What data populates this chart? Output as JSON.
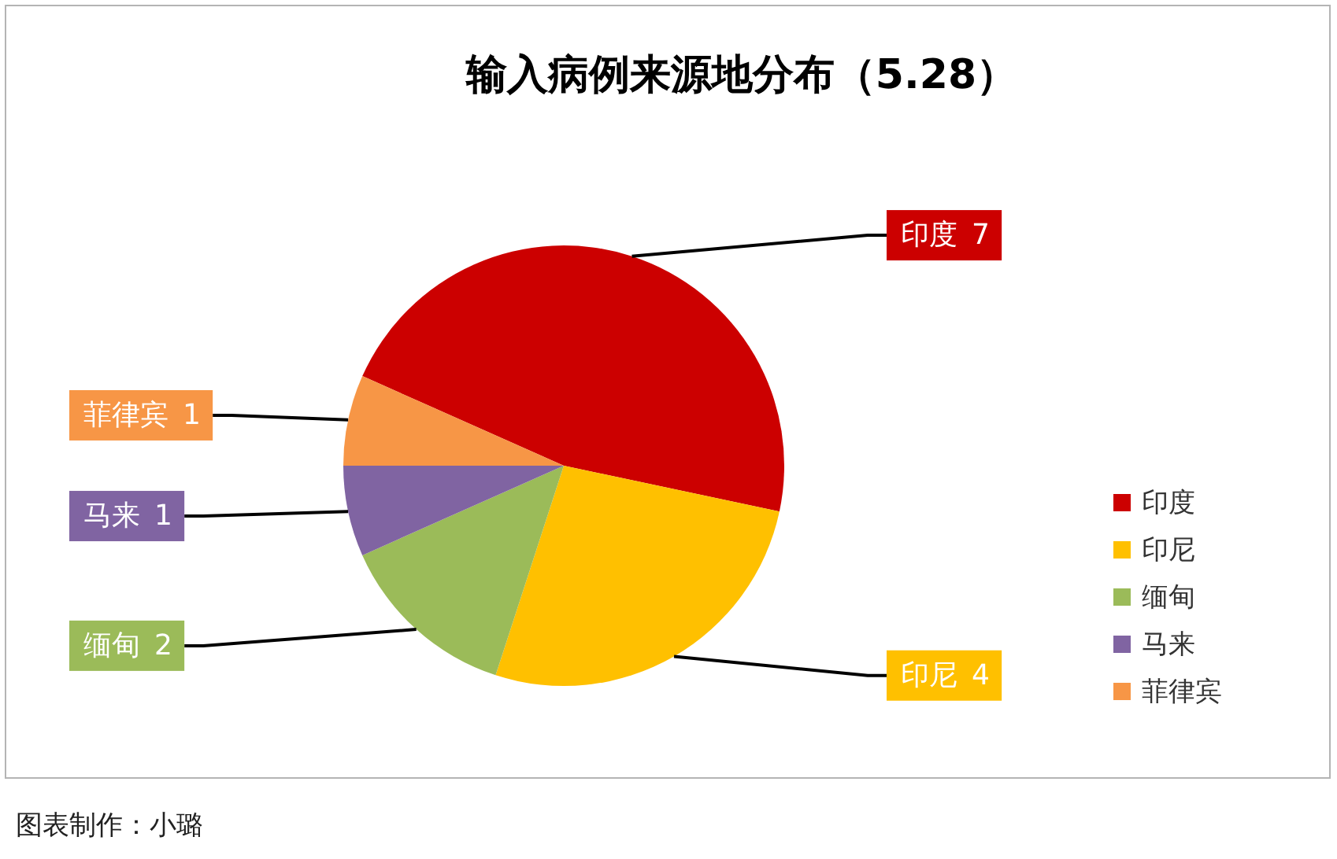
{
  "chart_data": {
    "type": "pie",
    "title": "输入病例来源地分布（5.28）",
    "categories": [
      "印度",
      "印尼",
      "缅甸",
      "马来",
      "菲律宾"
    ],
    "values": [
      7,
      4,
      2,
      1,
      1
    ],
    "colors": [
      "#cc0000",
      "#ffc000",
      "#9bbb59",
      "#8064a2",
      "#f79646"
    ],
    "data_labels": true,
    "legend": "bottom right",
    "annotations": [
      "图表制作：小璐"
    ]
  }
}
